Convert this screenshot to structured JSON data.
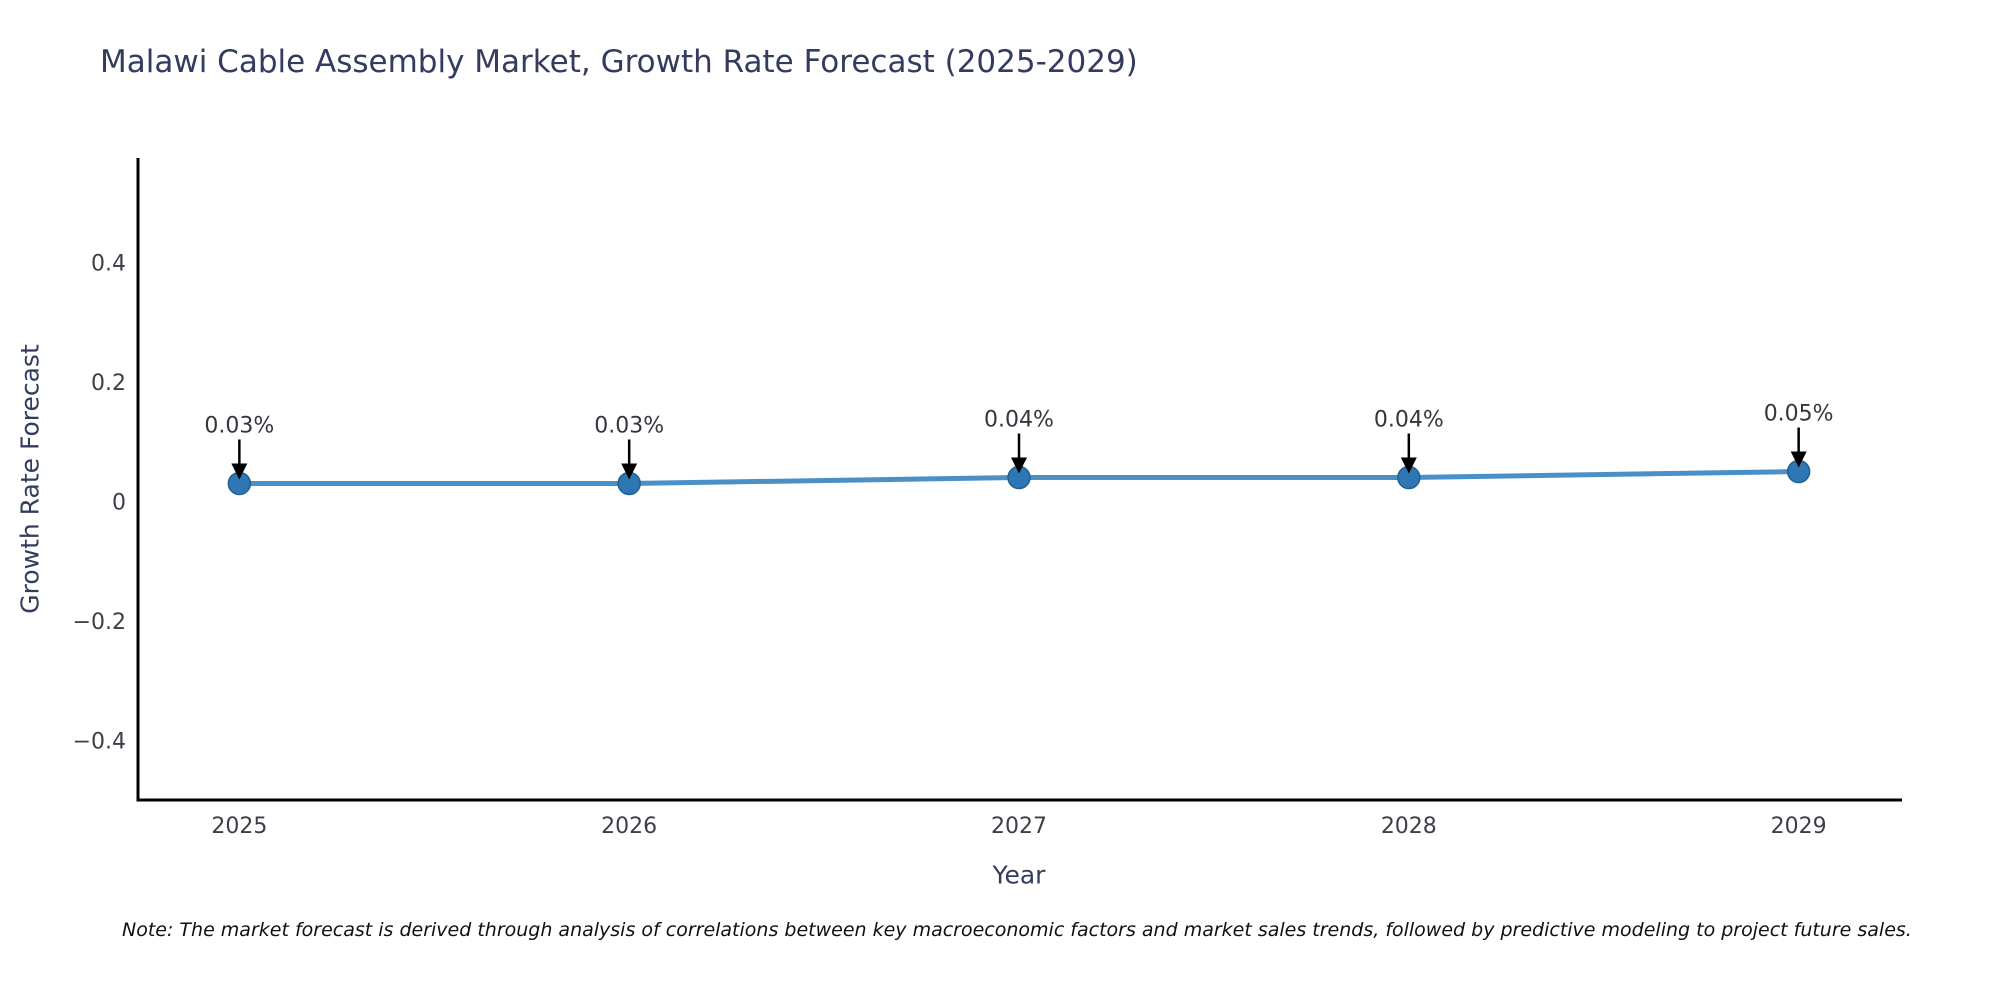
{
  "note": "Note: The market forecast is derived through analysis of correlations between key macroeconomic factors and market sales trends, followed by predictive modeling to project future sales.",
  "chart_data": {
    "type": "line",
    "title": "Malawi Cable Assembly Market, Growth Rate Forecast (2025-2029)",
    "xlabel": "Year",
    "ylabel": "Growth Rate Forecast",
    "series": [
      {
        "name": "Growth Rate Forecast",
        "x": [
          2025,
          2026,
          2027,
          2028,
          2029
        ],
        "values": [
          0.03,
          0.03,
          0.04,
          0.04,
          0.05
        ],
        "point_labels": [
          "0.03%",
          "0.03%",
          "0.04%",
          "0.04%",
          "0.05%"
        ]
      }
    ],
    "xlim": [
      2024.74,
      2029.26
    ],
    "ylim": [
      -0.5,
      0.575
    ],
    "xticks": [
      2025,
      2026,
      2027,
      2028,
      2029
    ],
    "xtick_labels": [
      "2025",
      "2026",
      "2027",
      "2028",
      "2029"
    ],
    "yticks": [
      -0.4,
      -0.2,
      0,
      0.2,
      0.4
    ],
    "ytick_labels": [
      "−0.4",
      "−0.2",
      "0",
      "0.2",
      "0.4"
    ],
    "grid": false,
    "legend": "none",
    "colors": {
      "line": "#4a90c8",
      "marker_fill": "#2e77b4",
      "marker_edge": "#21618f",
      "spine": "#000000",
      "tick_text": "#3c3f47",
      "annotation_text": "#33363d",
      "annotation_arrow": "#000000",
      "title_text": "#333c5e"
    }
  }
}
